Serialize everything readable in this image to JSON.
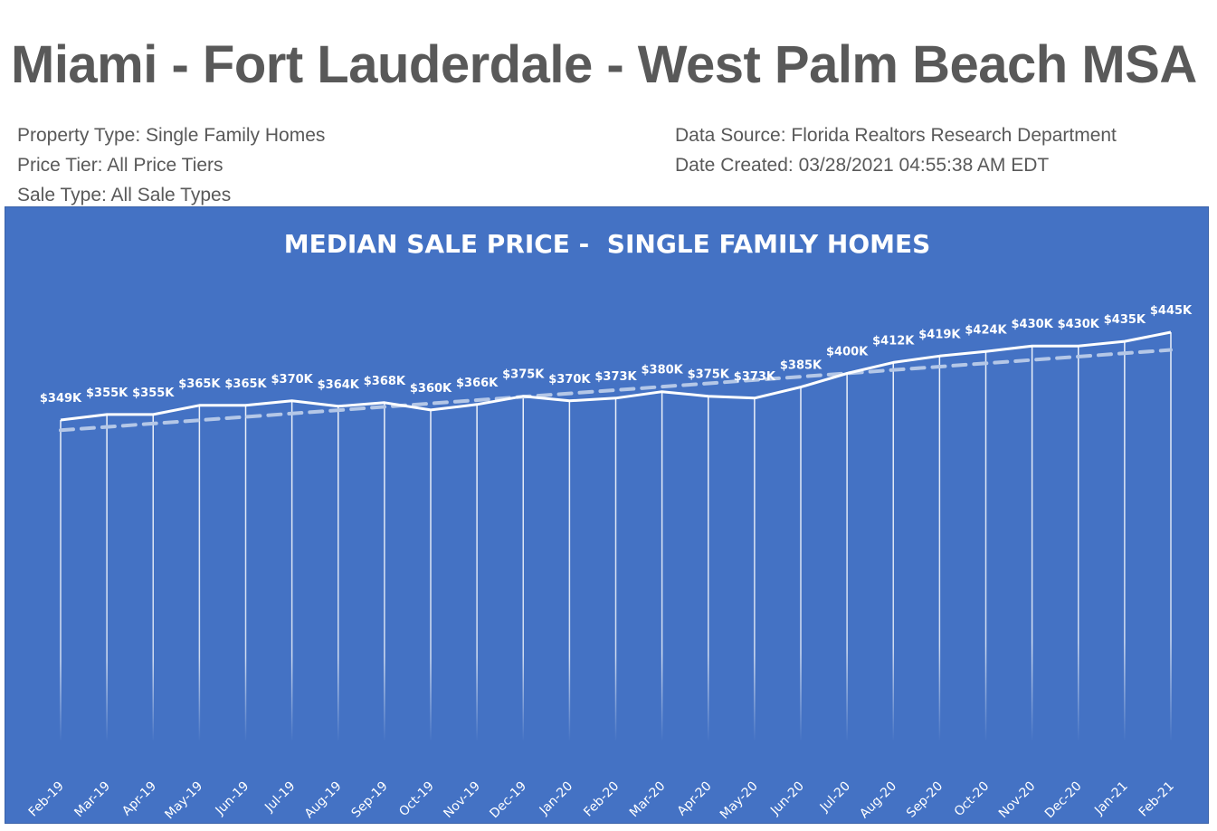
{
  "page": {
    "title": "Miami - Fort Lauderdale - West Palm Beach MSA",
    "meta_left": [
      "Property Type: Single Family Homes",
      "Price Tier: All Price Tiers",
      "Sale Type: All Sale Types"
    ],
    "meta_right": [
      "Data Source: Florida Realtors Research Department",
      "Date Created: 03/28/2021 04:55:38 AM EDT"
    ]
  },
  "colors": {
    "background": "#4472c4",
    "line": "#ffffff",
    "trend": "#b4c7e7",
    "text": "#595959"
  },
  "chart_data": {
    "type": "line",
    "title": "MEDIAN SALE PRICE -  SINGLE FAMILY HOMES",
    "xlabel": "",
    "ylabel": "",
    "grid": false,
    "legend": "none",
    "trendline": "linear (dashed)",
    "categories": [
      "Feb-19",
      "Mar-19",
      "Apr-19",
      "May-19",
      "Jun-19",
      "Jul-19",
      "Aug-19",
      "Sep-19",
      "Oct-19",
      "Nov-19",
      "Dec-19",
      "Jan-20",
      "Feb-20",
      "Mar-20",
      "Apr-20",
      "May-20",
      "Jun-20",
      "Jul-20",
      "Aug-20",
      "Sep-20",
      "Oct-20",
      "Nov-20",
      "Dec-20",
      "Jan-21",
      "Feb-21"
    ],
    "values": [
      349,
      355,
      355,
      365,
      365,
      370,
      364,
      368,
      360,
      366,
      375,
      370,
      373,
      380,
      375,
      373,
      385,
      400,
      412,
      419,
      424,
      430,
      430,
      435,
      445
    ],
    "labels": [
      "$349K",
      "$355K",
      "$355K",
      "$365K",
      "$365K",
      "$370K",
      "$364K",
      "$368K",
      "$360K",
      "$366K",
      "$375K",
      "$370K",
      "$373K",
      "$380K",
      "$375K",
      "$373K",
      "$385K",
      "$400K",
      "$412K",
      "$419K",
      "$424K",
      "$430K",
      "$430K",
      "$435K",
      "$445K"
    ],
    "units": "thousands USD"
  }
}
